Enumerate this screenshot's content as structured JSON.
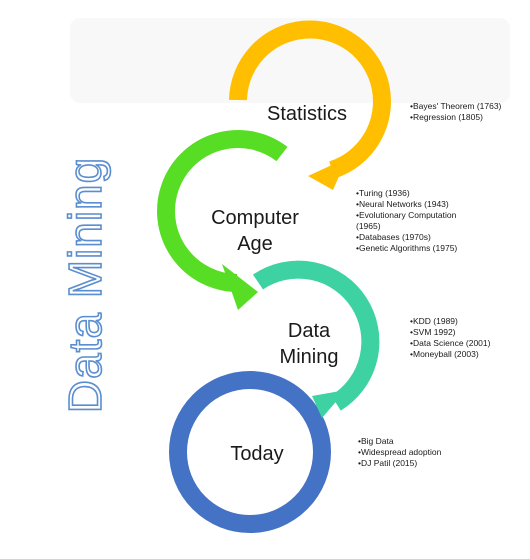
{
  "title": "Data Mining",
  "stages": [
    {
      "name": "Statistics",
      "color": "#ffbf00",
      "bullets": [
        "Bayes' Theorem (1763)",
        "Regression (1805)"
      ]
    },
    {
      "name": "Computer Age",
      "color": "#57dd23",
      "bullets": [
        "Turing (1936)",
        "Neural Networks (1943)",
        "Evolutionary Computation (1965)",
        "Databases (1970s)",
        "Genetic Algorithms (1975)"
      ]
    },
    {
      "name": "Data Mining",
      "color": "#3ed2a2",
      "bullets": [
        "KDD (1989)",
        "SVM 1992)",
        "Data Science (2001)",
        "Moneyball (2003)"
      ]
    },
    {
      "name": "Today",
      "color": "#4472c4",
      "bullets": [
        "Big Data",
        "Widespread adoption",
        "DJ Patil (2015)"
      ]
    }
  ]
}
